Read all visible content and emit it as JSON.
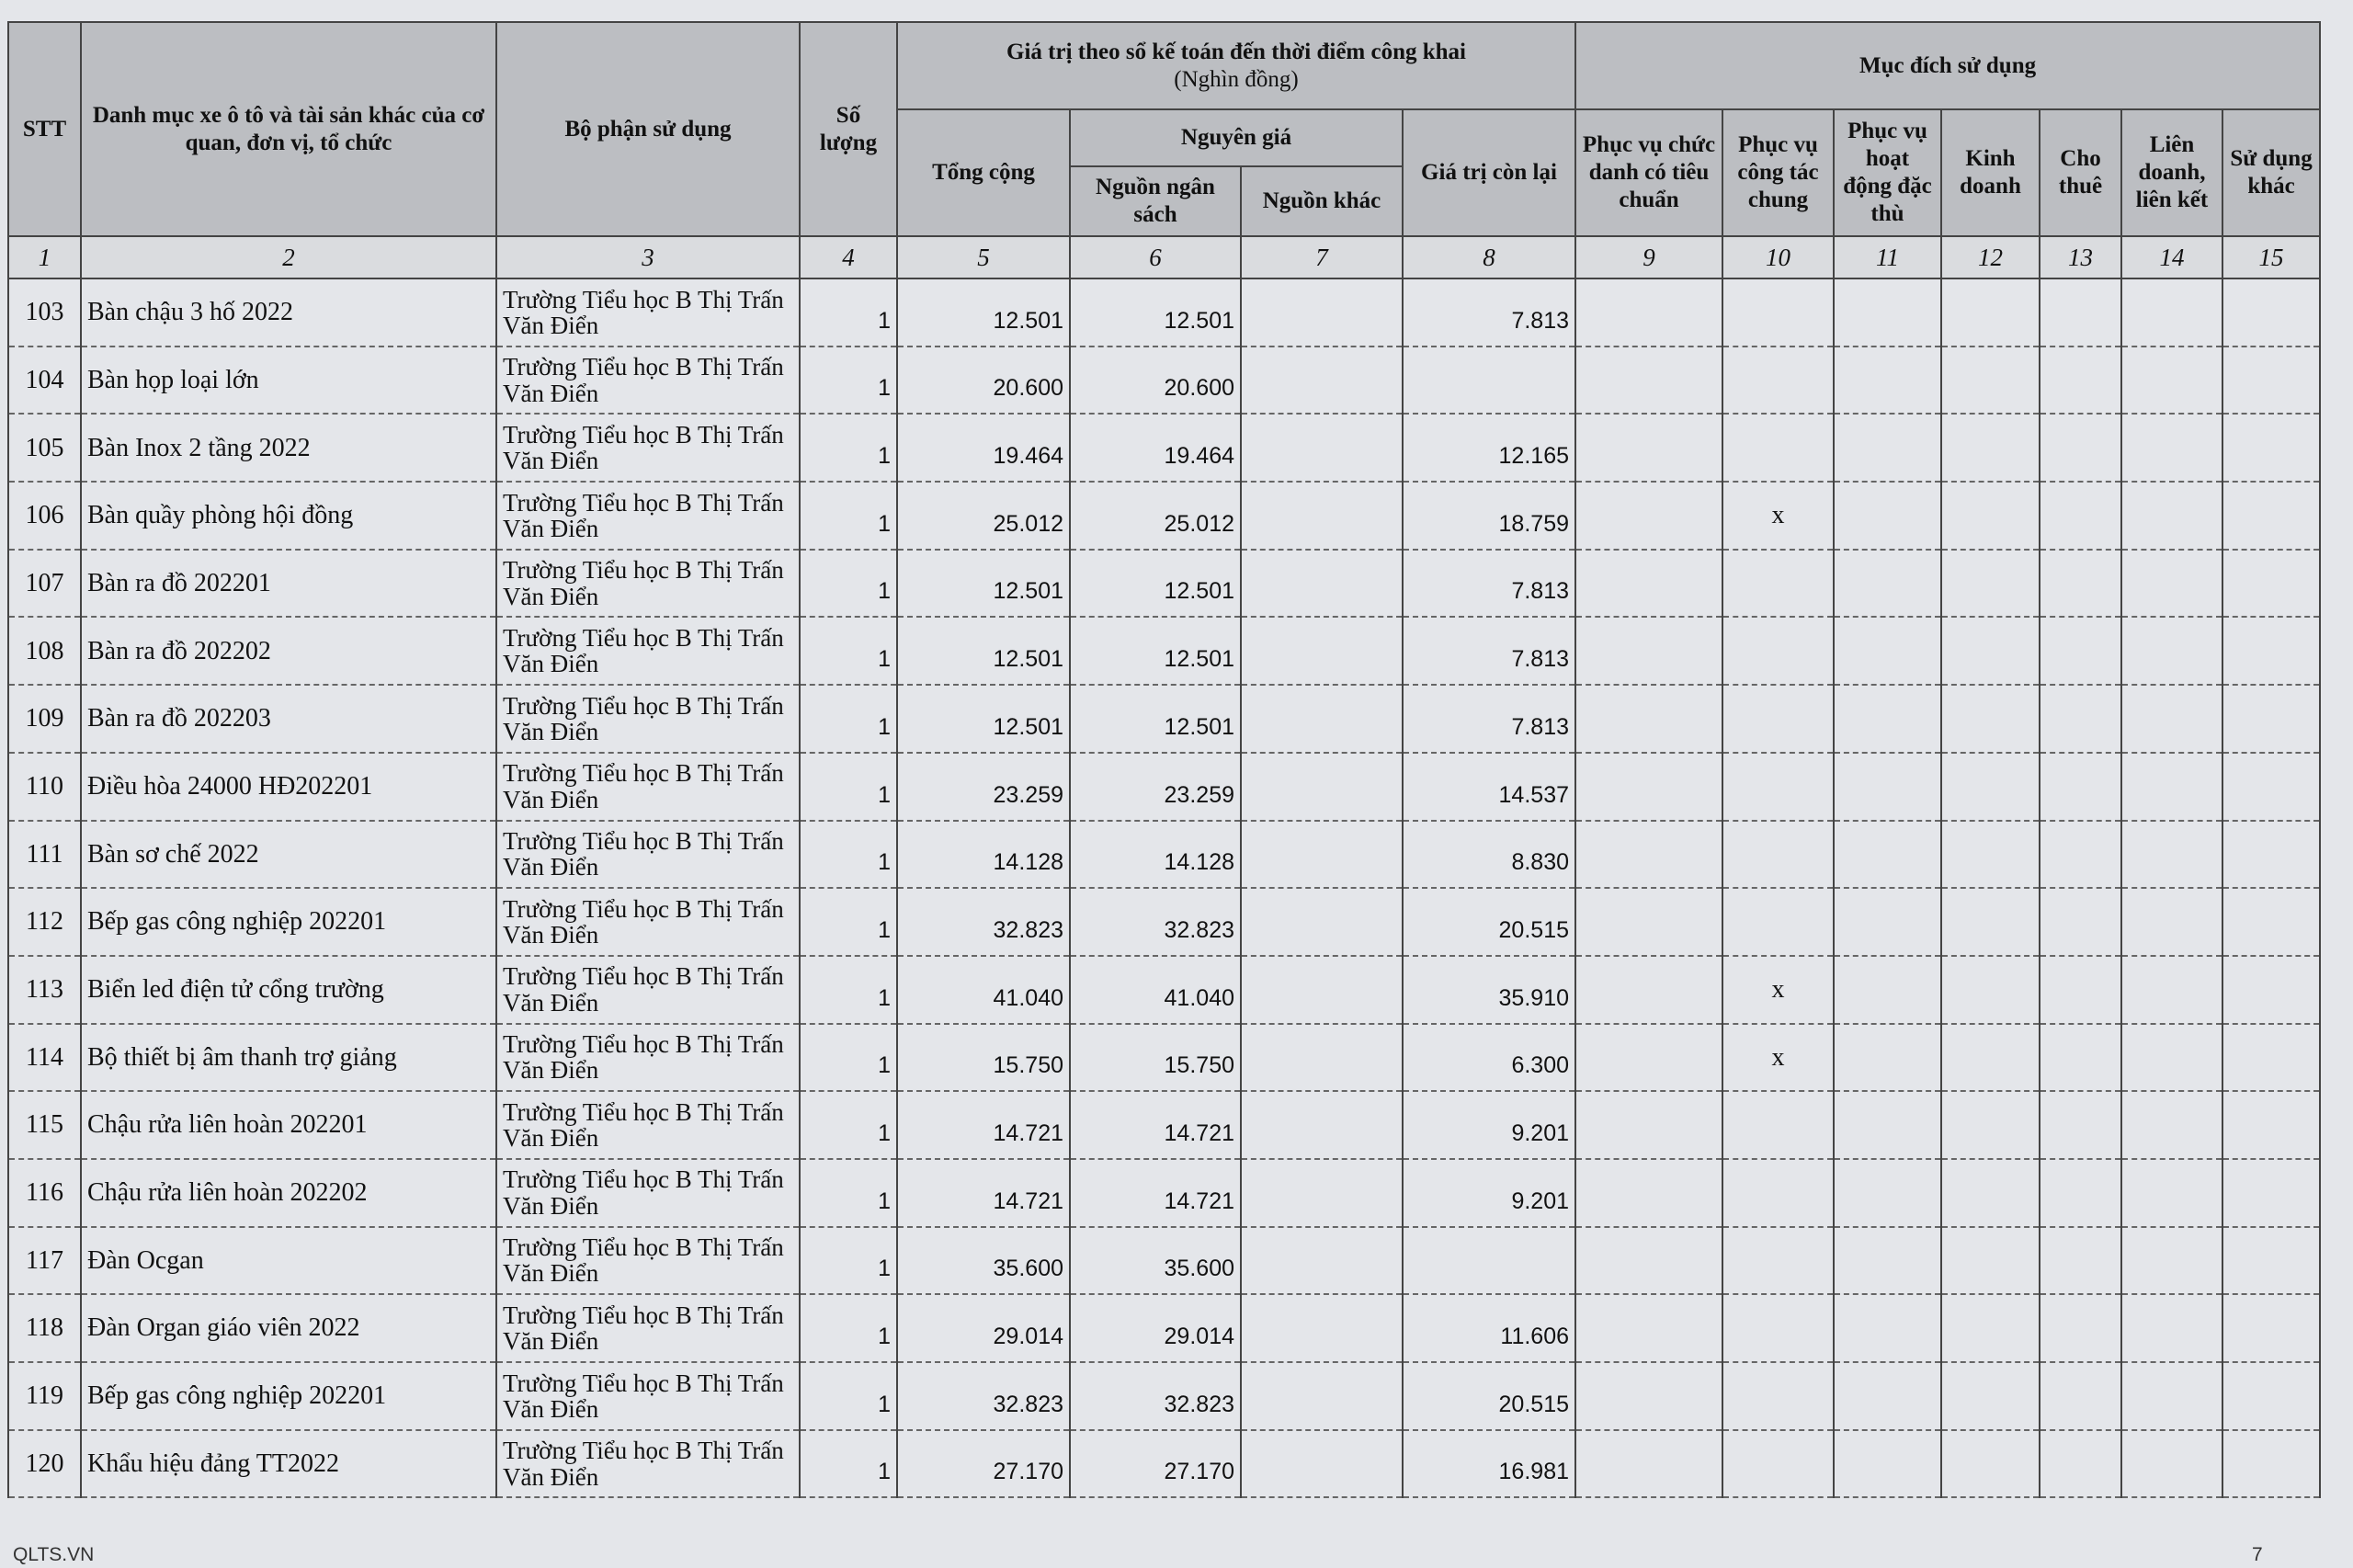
{
  "table": {
    "headers": {
      "stt": "STT",
      "item": "Danh mục xe ô tô và tài sản khác của cơ quan, đơn vị, tổ chức",
      "dept": "Bộ phận sử dụng",
      "qty": "Số lượng",
      "value_group": "Giá trị theo sổ kế toán đến thời điểm công khai",
      "value_unit": "(Nghìn đồng)",
      "total": "Tổng cộng",
      "original": "Nguyên giá",
      "budget": "Nguồn ngân sách",
      "other_source": "Nguồn khác",
      "remaining": "Giá trị còn lại",
      "purpose_group": "Mục đích sử dụng",
      "purposes": [
        "Phục vụ chức danh có tiêu chuẩn",
        "Phục vụ công tác chung",
        "Phục vụ hoạt động đặc thù",
        "Kinh doanh",
        "Cho thuê",
        "Liên doanh, liên kết",
        "Sử dụng khác"
      ]
    },
    "column_numbers": [
      "1",
      "2",
      "3",
      "4",
      "5",
      "6",
      "7",
      "8",
      "9",
      "10",
      "11",
      "12",
      "13",
      "14",
      "15"
    ],
    "rows": [
      {
        "stt": "103",
        "name": "Bàn chậu 3 hố 2022",
        "dept": "Trường Tiểu học B Thị Trấn Văn Điển",
        "qty": "1",
        "total": "12.501",
        "budget": "12.501",
        "remaining": "7.813"
      },
      {
        "stt": "104",
        "name": "Bàn họp loại lớn",
        "dept": "Trường Tiểu học B Thị Trấn Văn Điển",
        "qty": "1",
        "total": "20.600",
        "budget": "20.600"
      },
      {
        "stt": "105",
        "name": "Bàn Inox 2 tầng 2022",
        "dept": "Trường Tiểu học B Thị Trấn Văn Điển",
        "qty": "1",
        "total": "19.464",
        "budget": "19.464",
        "remaining": "12.165"
      },
      {
        "stt": "106",
        "name": "Bàn quầy phòng hội đồng",
        "dept": "Trường Tiểu học B Thị Trấn Văn Điển",
        "qty": "1",
        "total": "25.012",
        "budget": "25.012",
        "remaining": "18.759",
        "general_use": "x"
      },
      {
        "stt": "107",
        "name": "Bàn ra đồ 202201",
        "dept": "Trường Tiểu học B Thị Trấn Văn Điển",
        "qty": "1",
        "total": "12.501",
        "budget": "12.501",
        "remaining": "7.813"
      },
      {
        "stt": "108",
        "name": "Bàn ra đồ 202202",
        "dept": "Trường Tiểu học B Thị Trấn Văn Điển",
        "qty": "1",
        "total": "12.501",
        "budget": "12.501",
        "remaining": "7.813"
      },
      {
        "stt": "109",
        "name": "Bàn ra đồ 202203",
        "dept": "Trường Tiểu học B Thị Trấn Văn Điển",
        "qty": "1",
        "total": "12.501",
        "budget": "12.501",
        "remaining": "7.813"
      },
      {
        "stt": "110",
        "name": "Điều hòa 24000 HĐ202201",
        "dept": "Trường Tiểu học B Thị Trấn Văn Điển",
        "qty": "1",
        "total": "23.259",
        "budget": "23.259",
        "remaining": "14.537"
      },
      {
        "stt": "111",
        "name": "Bàn sơ chế 2022",
        "dept": "Trường Tiểu học B Thị Trấn Văn Điển",
        "qty": "1",
        "total": "14.128",
        "budget": "14.128",
        "remaining": "8.830"
      },
      {
        "stt": "112",
        "name": "Bếp gas công nghiệp 202201",
        "dept": "Trường Tiểu học B Thị Trấn Văn Điển",
        "qty": "1",
        "total": "32.823",
        "budget": "32.823",
        "remaining": "20.515"
      },
      {
        "stt": "113",
        "name": "Biển led điện tử cổng trường",
        "dept": "Trường Tiểu học B Thị Trấn Văn Điển",
        "qty": "1",
        "total": "41.040",
        "budget": "41.040",
        "remaining": "35.910",
        "general_use": "x"
      },
      {
        "stt": "114",
        "name": "Bộ thiết bị âm thanh trợ giảng",
        "dept": "Trường Tiểu học B Thị Trấn Văn Điển",
        "qty": "1",
        "total": "15.750",
        "budget": "15.750",
        "remaining": "6.300",
        "general_use": "x"
      },
      {
        "stt": "115",
        "name": "Chậu rửa liên hoàn 202201",
        "dept": "Trường Tiểu học B Thị Trấn Văn Điển",
        "qty": "1",
        "total": "14.721",
        "budget": "14.721",
        "remaining": "9.201"
      },
      {
        "stt": "116",
        "name": "Chậu rửa liên hoàn 202202",
        "dept": "Trường Tiểu học B Thị Trấn Văn Điển",
        "qty": "1",
        "total": "14.721",
        "budget": "14.721",
        "remaining": "9.201"
      },
      {
        "stt": "117",
        "name": "Đàn Ocgan",
        "dept": "Trường Tiểu học B Thị Trấn Văn Điển",
        "qty": "1",
        "total": "35.600",
        "budget": "35.600"
      },
      {
        "stt": "118",
        "name": "Đàn Organ giáo viên 2022",
        "dept": "Trường Tiểu học B Thị Trấn Văn Điển",
        "qty": "1",
        "total": "29.014",
        "budget": "29.014",
        "remaining": "11.606"
      },
      {
        "stt": "119",
        "name": "Bếp gas công nghiệp 202201",
        "dept": "Trường Tiểu học B Thị Trấn Văn Điển",
        "qty": "1",
        "total": "32.823",
        "budget": "32.823",
        "remaining": "20.515"
      },
      {
        "stt": "120",
        "name": "Khẩu hiệu đảng TT2022",
        "dept": "Trường Tiểu học B Thị Trấn Văn Điển",
        "qty": "1",
        "total": "27.170",
        "budget": "27.170",
        "remaining": "16.981"
      }
    ]
  },
  "footer": {
    "left": "QLTS.VN",
    "page": "7"
  }
}
